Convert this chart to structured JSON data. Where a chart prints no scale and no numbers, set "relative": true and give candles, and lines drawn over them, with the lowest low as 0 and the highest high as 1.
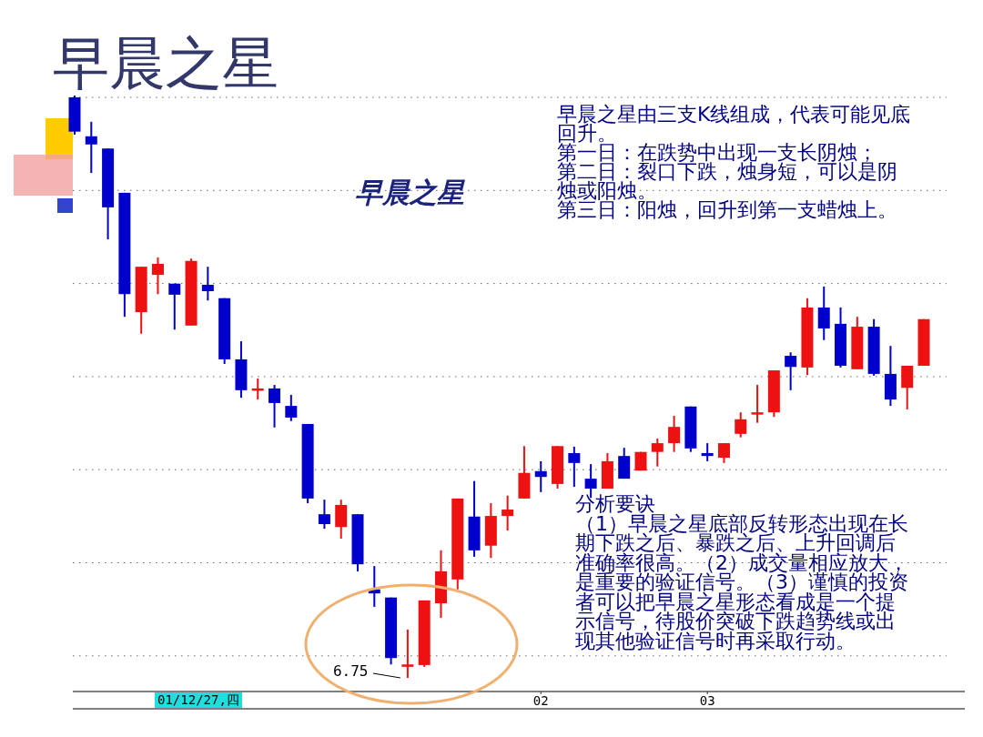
{
  "chart_data": {
    "type": "candlestick",
    "title": "早晨之星",
    "relative": true,
    "grid": "y",
    "categories": [
      null,
      null,
      null,
      null,
      null,
      null,
      null,
      null,
      null,
      null,
      null,
      null,
      null,
      null,
      null,
      null,
      null,
      null,
      null,
      null,
      null,
      null,
      null,
      null,
      null,
      null,
      null,
      null,
      "02",
      null,
      null,
      null,
      null,
      null,
      null,
      null,
      null,
      null,
      "03",
      null,
      null,
      null,
      null,
      null,
      null,
      null,
      null,
      null,
      null,
      null,
      null,
      null
    ],
    "ohlc": [
      [
        0.997,
        1.0,
        0.933,
        0.938
      ],
      [
        0.93,
        0.955,
        0.867,
        0.916
      ],
      [
        0.909,
        0.909,
        0.753,
        0.808
      ],
      [
        0.833,
        0.833,
        0.62,
        0.659
      ],
      [
        0.628,
        0.706,
        0.591,
        0.706
      ],
      [
        0.692,
        0.722,
        0.659,
        0.711
      ],
      [
        0.677,
        0.677,
        0.598,
        0.658
      ],
      [
        0.605,
        0.72,
        0.605,
        0.716
      ],
      [
        0.675,
        0.706,
        0.648,
        0.664
      ],
      [
        0.652,
        0.652,
        0.539,
        0.547
      ],
      [
        0.547,
        0.578,
        0.481,
        0.494
      ],
      [
        0.494,
        0.514,
        0.478,
        0.497
      ],
      [
        0.497,
        0.503,
        0.43,
        0.472
      ],
      [
        0.467,
        0.486,
        0.441,
        0.447
      ],
      [
        0.436,
        0.436,
        0.3,
        0.308
      ],
      [
        0.281,
        0.306,
        0.256,
        0.264
      ],
      [
        0.259,
        0.306,
        0.239,
        0.297
      ],
      [
        0.281,
        0.281,
        0.183,
        0.195
      ],
      [
        0.152,
        0.192,
        0.122,
        0.145
      ],
      [
        0.138,
        0.138,
        0.023,
        0.034
      ],
      [
        0.019,
        0.083,
        0.0,
        0.023
      ],
      [
        0.022,
        0.133,
        0.019,
        0.133
      ],
      [
        0.128,
        0.219,
        0.103,
        0.183
      ],
      [
        0.169,
        0.308,
        0.152,
        0.308
      ],
      [
        0.277,
        0.338,
        0.208,
        0.219
      ],
      [
        0.227,
        0.3,
        0.206,
        0.278
      ],
      [
        0.278,
        0.313,
        0.253,
        0.289
      ],
      [
        0.308,
        0.398,
        0.308,
        0.352
      ],
      [
        0.355,
        0.372,
        0.319,
        0.345
      ],
      [
        0.333,
        0.398,
        0.325,
        0.398
      ],
      [
        0.386,
        0.397,
        0.328,
        0.369
      ],
      [
        0.342,
        0.367,
        0.309,
        0.325
      ],
      [
        0.325,
        0.386,
        0.325,
        0.372
      ],
      [
        0.381,
        0.395,
        0.342,
        0.342
      ],
      [
        0.356,
        0.388,
        0.356,
        0.388
      ],
      [
        0.388,
        0.411,
        0.363,
        0.403
      ],
      [
        0.403,
        0.45,
        0.388,
        0.431
      ],
      [
        0.466,
        0.466,
        0.388,
        0.394
      ],
      [
        0.386,
        0.403,
        0.372,
        0.381
      ],
      [
        0.378,
        0.403,
        0.369,
        0.403
      ],
      [
        0.419,
        0.456,
        0.413,
        0.444
      ],
      [
        0.453,
        0.503,
        0.438,
        0.456
      ],
      [
        0.456,
        0.528,
        0.448,
        0.528
      ],
      [
        0.553,
        0.559,
        0.494,
        0.534
      ],
      [
        0.533,
        0.652,
        0.52,
        0.636
      ],
      [
        0.636,
        0.672,
        0.58,
        0.6
      ],
      [
        0.608,
        0.636,
        0.533,
        0.536
      ],
      [
        0.53,
        0.62,
        0.53,
        0.603
      ],
      [
        0.603,
        0.616,
        0.519,
        0.522
      ],
      [
        0.522,
        0.57,
        0.467,
        0.478
      ],
      [
        0.498,
        0.536,
        0.461,
        0.536
      ],
      [
        0.536,
        0.616,
        0.536,
        0.616
      ]
    ],
    "colors": [
      "#0000cc",
      "#0000cc",
      "#0000cc",
      "#0000cc",
      "#ee1111",
      "#ee1111",
      "#0000cc",
      "#ee1111",
      "#0000cc",
      "#0000cc",
      "#0000cc",
      "#ee1111",
      "#0000cc",
      "#0000cc",
      "#0000cc",
      "#0000cc",
      "#ee1111",
      "#0000cc",
      "#0000cc",
      "#0000cc",
      "#ee1111",
      "#ee1111",
      "#ee1111",
      "#ee1111",
      "#0000cc",
      "#ee1111",
      "#ee1111",
      "#ee1111",
      "#0000cc",
      "#ee1111",
      "#0000cc",
      "#0000cc",
      "#ee1111",
      "#0000cc",
      "#ee1111",
      "#ee1111",
      "#ee1111",
      "#0000cc",
      "#0000cc",
      "#ee1111",
      "#ee1111",
      "#ee1111",
      "#ee1111",
      "#0000cc",
      "#ee1111",
      "#0000cc",
      "#0000cc",
      "#ee1111",
      "#0000cc",
      "#0000cc",
      "#ee1111",
      "#ee1111"
    ],
    "annotations": [
      "早晨之星由三支K线组成，代表可能见底回升。",
      "第一日：在跌势中出现一支长阴烛；",
      "第二日：裂口下跌，烛身短，可以是阴烛或阳烛。",
      "第三日：阳烛，回升到第一支蜡烛上。",
      "早晨之星",
      "分析要诀",
      "（1）早晨之星底部反转形态出现在长期下跌之后、暴跌之后、上升回调后准确率很高。（2）成交量相应放大，是重要的验证信号。（3）谨慎的投资者可以把早晨之星形态看成是一个提示信号，待股价突破下跌趋势线或出现其他验证信号时再采取行动。",
      "01/12/27,四",
      "6.75"
    ]
  }
}
